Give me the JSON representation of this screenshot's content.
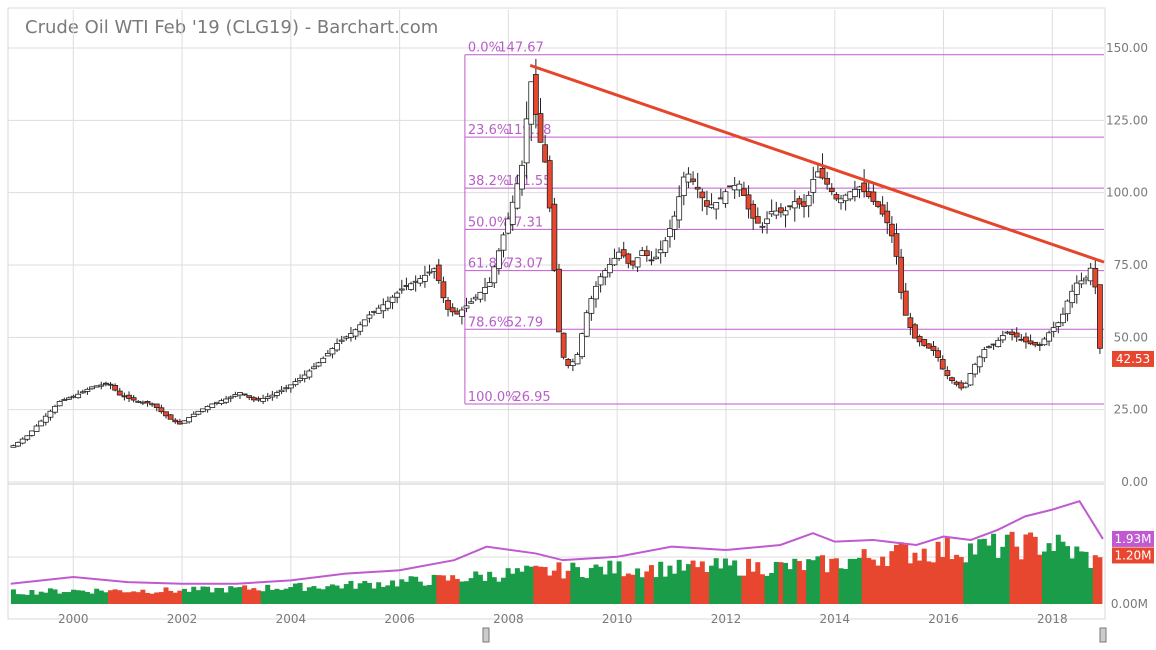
{
  "title": "Crude Oil WTI Feb '19 (CLG19) - Barchart.com",
  "colors": {
    "up": "#1a9c48",
    "down": "#e8472f",
    "fib": "#c05ad0",
    "trend": "#e5452b",
    "avg": "#c05ad0",
    "grid": "#dddddd",
    "candle_outline": "#222222"
  },
  "chart_data": [
    {
      "type": "candlestick",
      "title": "Crude Oil WTI Feb '19 (CLG19) - Barchart.com",
      "x_ticks": [
        "2000",
        "2002",
        "2004",
        "2006",
        "2008",
        "2010",
        "2012",
        "2014",
        "2016",
        "2018"
      ],
      "y_ticks": [
        "150.00",
        "125.00",
        "100.00",
        "75.00",
        "50.00",
        "25.00",
        "0.00"
      ],
      "ylim": [
        0,
        150
      ],
      "xlim": [
        1998.8,
        2018.95
      ],
      "grid": true,
      "last_price": "42.53",
      "close_series": {
        "x": [
          1998.9,
          1999.2,
          1999.5,
          1999.8,
          2000.1,
          2000.4,
          2000.7,
          2000.9,
          2001.2,
          2001.5,
          2001.8,
          2002.0,
          2002.3,
          2002.6,
          2002.9,
          2003.1,
          2003.4,
          2003.7,
          2004.0,
          2004.3,
          2004.6,
          2004.9,
          2005.2,
          2005.5,
          2005.8,
          2006.1,
          2006.4,
          2006.7,
          2006.9,
          2007.1,
          2007.4,
          2007.7,
          2007.9,
          2008.1,
          2008.3,
          2008.45,
          2008.6,
          2008.75,
          2008.9,
          2009.0,
          2009.15,
          2009.3,
          2009.5,
          2009.7,
          2009.9,
          2010.1,
          2010.3,
          2010.5,
          2010.7,
          2010.9,
          2011.1,
          2011.3,
          2011.5,
          2011.7,
          2011.9,
          2012.1,
          2012.3,
          2012.5,
          2012.7,
          2012.9,
          2013.1,
          2013.3,
          2013.5,
          2013.7,
          2013.9,
          2014.1,
          2014.3,
          2014.5,
          2014.7,
          2014.85,
          2015.0,
          2015.15,
          2015.3,
          2015.5,
          2015.7,
          2015.9,
          2016.05,
          2016.2,
          2016.4,
          2016.6,
          2016.8,
          2017.0,
          2017.2,
          2017.4,
          2017.6,
          2017.8,
          2018.0,
          2018.2,
          2018.35,
          2018.5,
          2018.65,
          2018.75,
          2018.85,
          2018.93
        ],
        "values": [
          12,
          16,
          22,
          28,
          30,
          33,
          34,
          30,
          28,
          27,
          22,
          20,
          24,
          27,
          29,
          31,
          28,
          30,
          33,
          37,
          42,
          48,
          52,
          58,
          62,
          67,
          70,
          74,
          60,
          58,
          63,
          69,
          82,
          95,
          110,
          140,
          120,
          108,
          70,
          45,
          40,
          43,
          60,
          70,
          75,
          80,
          74,
          80,
          76,
          82,
          92,
          108,
          102,
          95,
          97,
          102,
          103,
          92,
          88,
          94,
          93,
          97,
          95,
          108,
          103,
          97,
          100,
          102,
          98,
          95,
          90,
          82,
          60,
          50,
          47,
          45,
          38,
          35,
          32,
          40,
          46,
          48,
          52,
          50,
          48,
          47,
          52,
          56,
          64,
          69,
          70,
          74,
          66,
          42.53
        ]
      },
      "fib_levels": [
        {
          "pct": "0.0%",
          "price": "147.67",
          "value": 147.67
        },
        {
          "pct": "23.6%",
          "price": "119.18",
          "value": 119.18
        },
        {
          "pct": "38.2%",
          "price": "101.55",
          "value": 101.55
        },
        {
          "pct": "50.0%",
          "price": "87.31",
          "value": 87.31
        },
        {
          "pct": "61.8%",
          "price": "73.07",
          "value": 73.07
        },
        {
          "pct": "78.6%",
          "price": "52.79",
          "value": 52.79
        },
        {
          "pct": "100.0%",
          "price": "26.95",
          "value": 26.95
        }
      ],
      "fib_start_x": 2007.2,
      "trendline": {
        "x": [
          2008.4,
          2018.95
        ],
        "y": [
          144,
          76
        ]
      }
    },
    {
      "type": "bar",
      "title": "",
      "series": [
        {
          "kind": "volume"
        },
        {
          "kind": "volume average",
          "last_label": "1.93M"
        }
      ],
      "last_volume_label": "1.20M",
      "y_ticks": [
        "0.00M"
      ],
      "volume_x": [
        1999.0,
        2000.0,
        2001.0,
        2002.0,
        2003.0,
        2004.0,
        2005.0,
        2006.0,
        2007.0,
        2008.0,
        2009.0,
        2010.0,
        2011.0,
        2012.0,
        2013.0,
        2014.0,
        2015.0,
        2016.0,
        2017.0,
        2018.0,
        2018.9
      ],
      "volume_values": [
        0.35,
        0.4,
        0.4,
        0.4,
        0.45,
        0.5,
        0.55,
        0.65,
        0.75,
        0.9,
        1.0,
        1.05,
        1.05,
        1.1,
        1.1,
        1.2,
        1.5,
        1.6,
        1.7,
        1.8,
        1.2
      ],
      "avg_x": [
        1998.85,
        2000.0,
        2001.0,
        2002.0,
        2003.0,
        2004.0,
        2005.0,
        2006.0,
        2007.0,
        2007.6,
        2008.5,
        2009.0,
        2010.0,
        2011.0,
        2012.0,
        2013.0,
        2013.6,
        2014.0,
        2014.7,
        2015.5,
        2016.0,
        2016.5,
        2017.0,
        2017.5,
        2018.0,
        2018.5,
        2018.93
      ],
      "avg_values": [
        0.6,
        0.8,
        0.65,
        0.6,
        0.6,
        0.7,
        0.9,
        1.0,
        1.3,
        1.7,
        1.5,
        1.3,
        1.4,
        1.7,
        1.6,
        1.75,
        2.1,
        1.85,
        1.9,
        1.75,
        2.0,
        1.9,
        2.2,
        2.6,
        2.8,
        3.05,
        1.93
      ],
      "vol_max": 3.5
    }
  ]
}
